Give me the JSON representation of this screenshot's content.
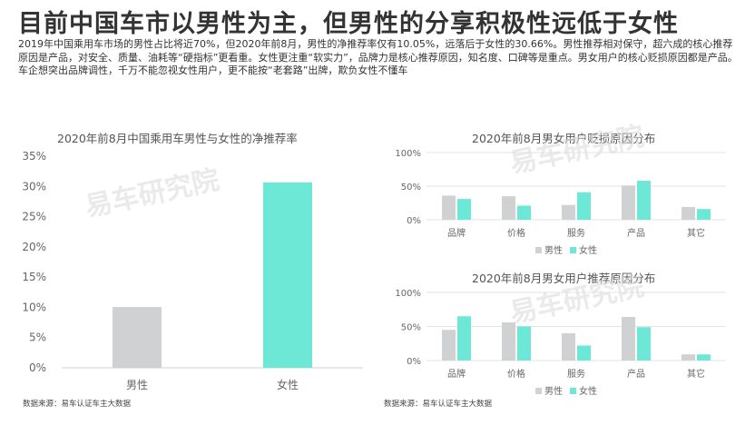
{
  "page": {
    "title": "目前中国车市以男性为主，但男性的分享积极性远低于女性",
    "summary": "2019年中国乘用车市场的男性占比将近70%，但2020年前8月，男性的净推荐率仅有10.05%，远落后于女性的30.66%。男性推荐相对保守，超六成的核心推荐原因是产品，对安全、质量、油耗等“硬指标”更看重。女性更注重“软实力”，品牌力是核心推荐原因，知名度、口碑等是重点。男女用户的核心贬损原因都是产品。车企想突出品牌调性，千万不能忽视女性用户，更不能按“老套路”出牌，欺负女性不懂车",
    "watermark": "易车研究院",
    "source_left": "数据来源：易车认证车主大数据",
    "source_right": "数据来源：易车认证车主大数据"
  },
  "colors": {
    "male": "#cfd1d3",
    "female": "#6ee8d6",
    "grid": "#e3e3e3",
    "axis_text": "#666666"
  },
  "chart_data": [
    {
      "type": "bar",
      "title": "2020年前8月中国乘用车男性与女性的净推荐率",
      "categories": [
        "男性",
        "女性"
      ],
      "values": [
        10.05,
        30.66
      ],
      "bar_colors": [
        "#cfd1d3",
        "#6ee8d6"
      ],
      "yticks": [
        "0%",
        "5%",
        "10%",
        "15%",
        "20%",
        "25%",
        "30%",
        "35%"
      ],
      "ylim": [
        0,
        35
      ],
      "grid": false
    },
    {
      "type": "bar",
      "title": "2020年前8月男女用户贬损原因分布",
      "categories": [
        "品牌",
        "价格",
        "服务",
        "产品",
        "其它"
      ],
      "series": [
        {
          "name": "男性",
          "values": [
            36,
            35,
            22,
            51,
            19
          ]
        },
        {
          "name": "女性",
          "values": [
            31,
            21,
            41,
            58,
            16
          ]
        }
      ],
      "yticks": [
        "0%",
        "50%",
        "100%"
      ],
      "ylim": [
        0,
        100
      ],
      "grid": true,
      "legend": "bottom"
    },
    {
      "type": "bar",
      "title": "2020年前8月男女用户推荐原因分布",
      "categories": [
        "品牌",
        "价格",
        "服务",
        "产品",
        "其它"
      ],
      "series": [
        {
          "name": "男性",
          "values": [
            45,
            56,
            40,
            64,
            9
          ]
        },
        {
          "name": "女性",
          "values": [
            65,
            50,
            22,
            49,
            9
          ]
        }
      ],
      "yticks": [
        "0%",
        "50%",
        "100%"
      ],
      "ylim": [
        0,
        100
      ],
      "grid": true,
      "legend": "bottom"
    }
  ]
}
